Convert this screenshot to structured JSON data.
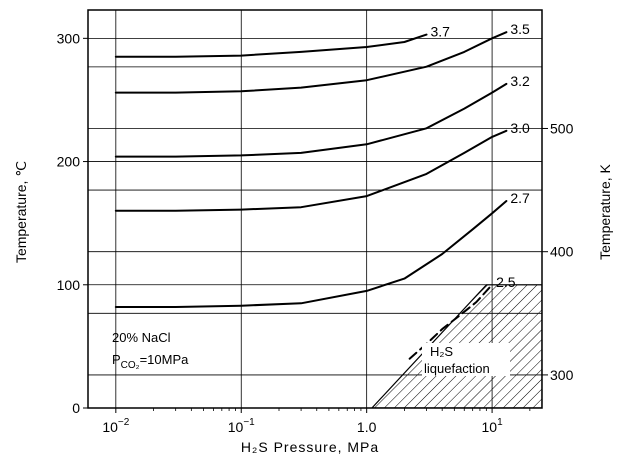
{
  "chart_data": {
    "type": "line",
    "xlabel": "H₂S Pressure, MPa",
    "ylabel": "Temperature, ℃",
    "y2label": "Temperature, K",
    "x_scale": "log",
    "xlim": [
      0.006,
      25
    ],
    "ylim": [
      0,
      323
    ],
    "y2lim": [
      273.15,
      596.15
    ],
    "grid": true,
    "x_ticks": [
      {
        "value": 0.01,
        "base": "10",
        "exp": "−2"
      },
      {
        "value": 0.1,
        "base": "10",
        "exp": "−1"
      },
      {
        "value": 1,
        "base": "1.0",
        "exp": ""
      },
      {
        "value": 10,
        "base": "10",
        "exp": "1"
      }
    ],
    "y_ticks": [
      {
        "value": 0,
        "label": "0"
      },
      {
        "value": 100,
        "label": "100"
      },
      {
        "value": 200,
        "label": "200"
      },
      {
        "value": 300,
        "label": "300"
      }
    ],
    "y2_ticks": [
      {
        "value": 300,
        "label": "300"
      },
      {
        "value": 400,
        "label": "400"
      },
      {
        "value": 500,
        "label": "500"
      }
    ],
    "series": [
      {
        "name": "3.7",
        "x": [
          0.01,
          0.03,
          0.1,
          0.3,
          1,
          2,
          3
        ],
        "y": [
          285,
          285,
          286,
          289,
          293,
          297,
          303
        ]
      },
      {
        "name": "3.5",
        "x": [
          0.01,
          0.03,
          0.1,
          0.3,
          1,
          3,
          6,
          10,
          13
        ],
        "y": [
          256,
          256,
          257,
          260,
          266,
          277,
          289,
          300,
          305
        ]
      },
      {
        "name": "3.2",
        "x": [
          0.01,
          0.03,
          0.1,
          0.3,
          1,
          3,
          6,
          10,
          13
        ],
        "y": [
          204,
          204,
          205,
          207,
          214,
          227,
          243,
          256,
          263
        ]
      },
      {
        "name": "3.0",
        "x": [
          0.01,
          0.03,
          0.1,
          0.3,
          1,
          3,
          6,
          10,
          13
        ],
        "y": [
          160,
          160,
          161,
          163,
          172,
          190,
          207,
          220,
          225
        ]
      },
      {
        "name": "2.7",
        "x": [
          0.01,
          0.03,
          0.1,
          0.3,
          1,
          2,
          4,
          7,
          10,
          13
        ],
        "y": [
          82,
          82,
          83,
          85,
          95,
          105,
          125,
          145,
          158,
          168
        ]
      },
      {
        "name": "2.5",
        "x": [
          2.2,
          3,
          4,
          5.5,
          7.5,
          10
        ],
        "y": [
          40,
          52,
          64,
          75,
          86,
          100
        ],
        "dashed": true
      }
    ],
    "hatched_region": {
      "label": "H₂S liquefaction",
      "x": [
        1.1,
        9,
        25,
        25
      ],
      "y": [
        0,
        100,
        100,
        0
      ]
    },
    "annotations": {
      "nacl": "20% NaCl",
      "pco2_prefix": "P",
      "pco2_sub": "CO₂",
      "pco2_suffix": "=10MPa",
      "liq_line1": "H₂S",
      "liq_line2": "liquefaction"
    }
  }
}
